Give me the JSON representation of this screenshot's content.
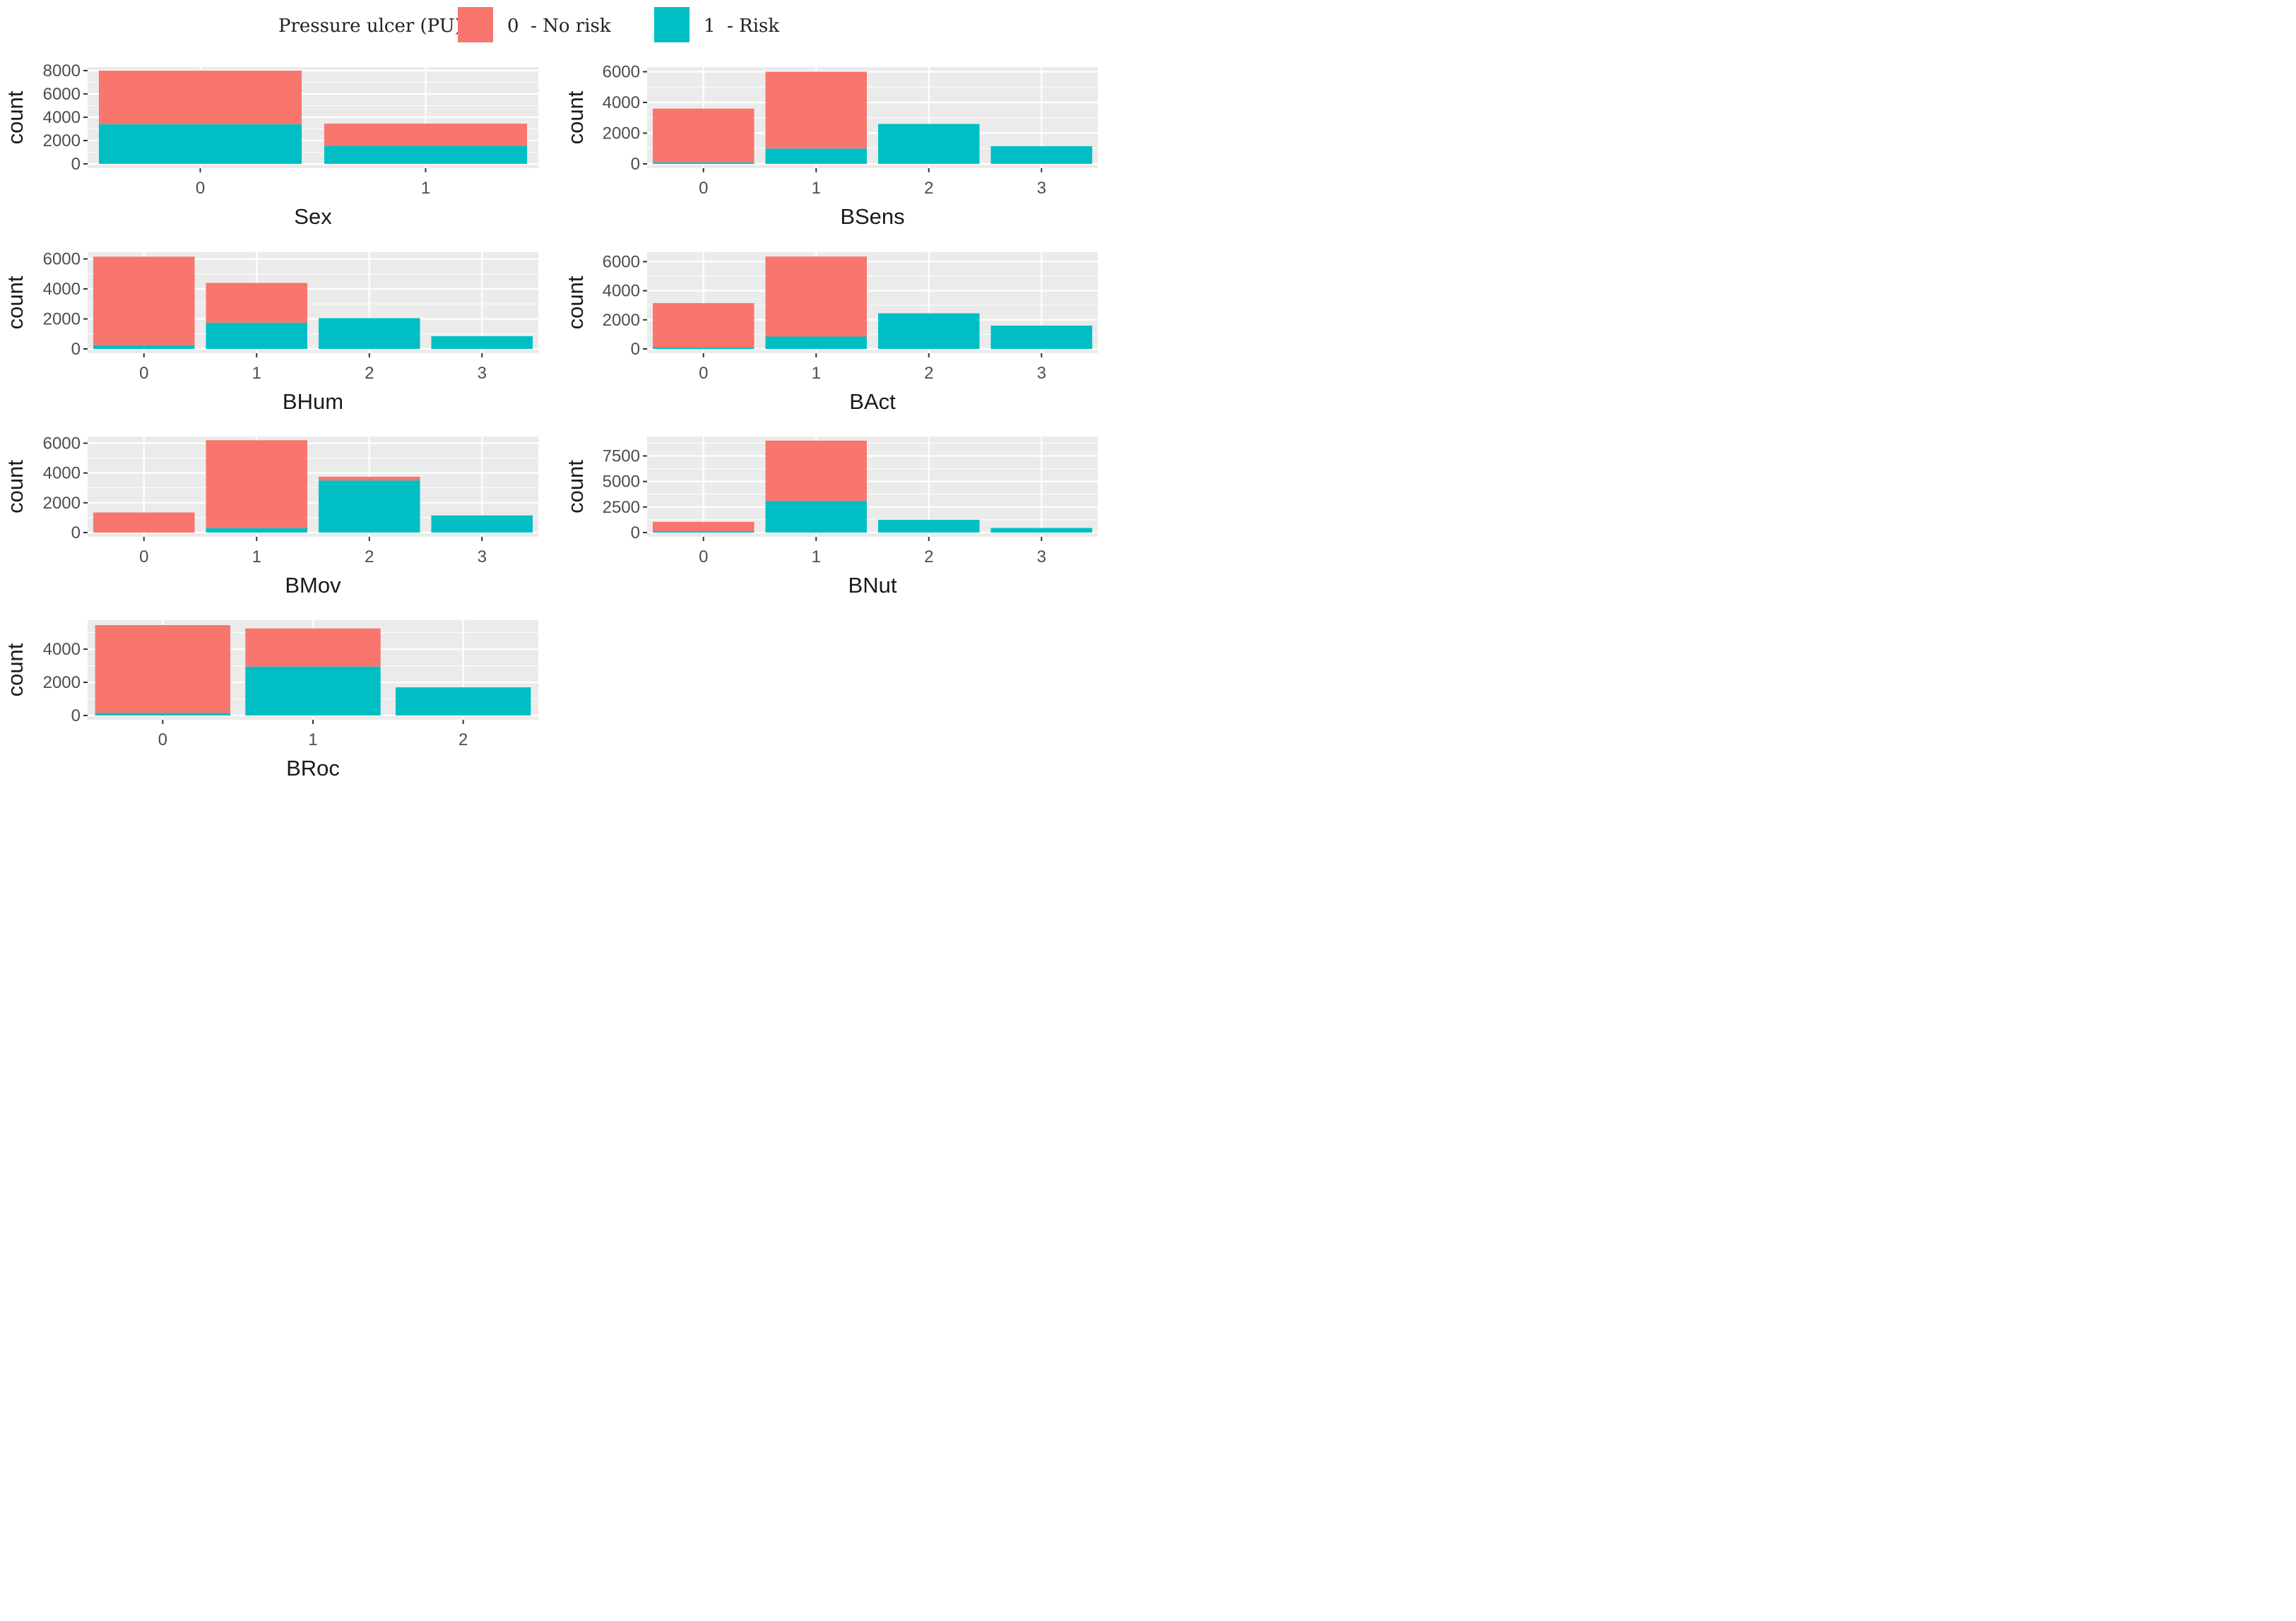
{
  "legend": {
    "title": "Pressure ulcer (PU)",
    "entries": [
      {
        "key": "0",
        "label": "- No risk",
        "color": "#F8766D"
      },
      {
        "key": "1",
        "label": "- Risk",
        "color": "#00BFC4"
      }
    ]
  },
  "colors": {
    "no_risk": "#F8766D",
    "risk": "#00BFC4",
    "panel_bg": "#EBEBEB",
    "grid": "#FFFFFF"
  },
  "chart_data": [
    {
      "type": "bar",
      "stacked": true,
      "title": "",
      "xlabel": "Sex",
      "ylabel": "count",
      "categories": [
        "0",
        "1"
      ],
      "series": [
        {
          "name": "0 - No risk",
          "values": [
            4600,
            1900
          ]
        },
        {
          "name": "1 - Risk",
          "values": [
            3400,
            1550
          ]
        }
      ],
      "ylim": [
        0,
        8300
      ],
      "yticks": [
        0,
        2000,
        4000,
        6000,
        8000
      ],
      "tick_labels": [
        "0",
        "2000",
        "4000",
        "6000",
        "8000"
      ]
    },
    {
      "type": "bar",
      "stacked": true,
      "title": "",
      "xlabel": "BSens",
      "ylabel": "count",
      "categories": [
        "0",
        "1",
        "2",
        "3"
      ],
      "series": [
        {
          "name": "0 - No risk",
          "values": [
            3500,
            5000,
            0,
            0
          ]
        },
        {
          "name": "1 - Risk",
          "values": [
            100,
            1000,
            2600,
            1150
          ]
        }
      ],
      "ylim": [
        0,
        6300
      ],
      "yticks": [
        0,
        2000,
        4000,
        6000
      ],
      "tick_labels": [
        "0",
        "2000",
        "4000",
        "6000"
      ]
    },
    {
      "type": "bar",
      "stacked": true,
      "title": "",
      "xlabel": "BHum",
      "ylabel": "count",
      "categories": [
        "0",
        "1",
        "2",
        "3"
      ],
      "series": [
        {
          "name": "0 - No risk",
          "values": [
            5900,
            2650,
            0,
            0
          ]
        },
        {
          "name": "1 - Risk",
          "values": [
            250,
            1750,
            2050,
            850
          ]
        }
      ],
      "ylim": [
        0,
        6450
      ],
      "yticks": [
        0,
        2000,
        4000,
        6000
      ],
      "tick_labels": [
        "0",
        "2000",
        "4000",
        "6000"
      ]
    },
    {
      "type": "bar",
      "stacked": true,
      "title": "",
      "xlabel": "BAct",
      "ylabel": "count",
      "categories": [
        "0",
        "1",
        "2",
        "3"
      ],
      "series": [
        {
          "name": "0 - No risk",
          "values": [
            3050,
            5500,
            0,
            0
          ]
        },
        {
          "name": "1 - Risk",
          "values": [
            100,
            850,
            2450,
            1600
          ]
        }
      ],
      "ylim": [
        0,
        6650
      ],
      "yticks": [
        0,
        2000,
        4000,
        6000
      ],
      "tick_labels": [
        "0",
        "2000",
        "4000",
        "6000"
      ]
    },
    {
      "type": "bar",
      "stacked": true,
      "title": "",
      "xlabel": "BMov",
      "ylabel": "count",
      "categories": [
        "0",
        "1",
        "2",
        "3"
      ],
      "series": [
        {
          "name": "0 - No risk",
          "values": [
            1350,
            5900,
            250,
            0
          ]
        },
        {
          "name": "1 - Risk",
          "values": [
            0,
            300,
            3500,
            1150
          ]
        }
      ],
      "ylim": [
        0,
        6450
      ],
      "yticks": [
        0,
        2000,
        4000,
        6000
      ],
      "tick_labels": [
        "0",
        "2000",
        "4000",
        "6000"
      ]
    },
    {
      "type": "bar",
      "stacked": true,
      "title": "",
      "xlabel": "BNut",
      "ylabel": "count",
      "categories": [
        "0",
        "1",
        "2",
        "3"
      ],
      "series": [
        {
          "name": "0 - No risk",
          "values": [
            900,
            5900,
            0,
            0
          ]
        },
        {
          "name": "1 - Risk",
          "values": [
            150,
            3100,
            1250,
            450
          ]
        }
      ],
      "ylim": [
        0,
        9400
      ],
      "yticks": [
        0,
        2500,
        5000,
        7500
      ],
      "tick_labels": [
        "0",
        "2500",
        "5000",
        "7500"
      ]
    },
    {
      "type": "bar",
      "stacked": true,
      "title": "",
      "xlabel": "BRoc",
      "ylabel": "count",
      "categories": [
        "0",
        "1",
        "2"
      ],
      "series": [
        {
          "name": "0 - No risk",
          "values": [
            5300,
            2300,
            0
          ]
        },
        {
          "name": "1 - Risk",
          "values": [
            150,
            2950,
            1700
          ]
        }
      ],
      "ylim": [
        0,
        5750
      ],
      "yticks": [
        0,
        2000,
        4000
      ],
      "tick_labels": [
        "0",
        "2000",
        "4000"
      ]
    }
  ]
}
